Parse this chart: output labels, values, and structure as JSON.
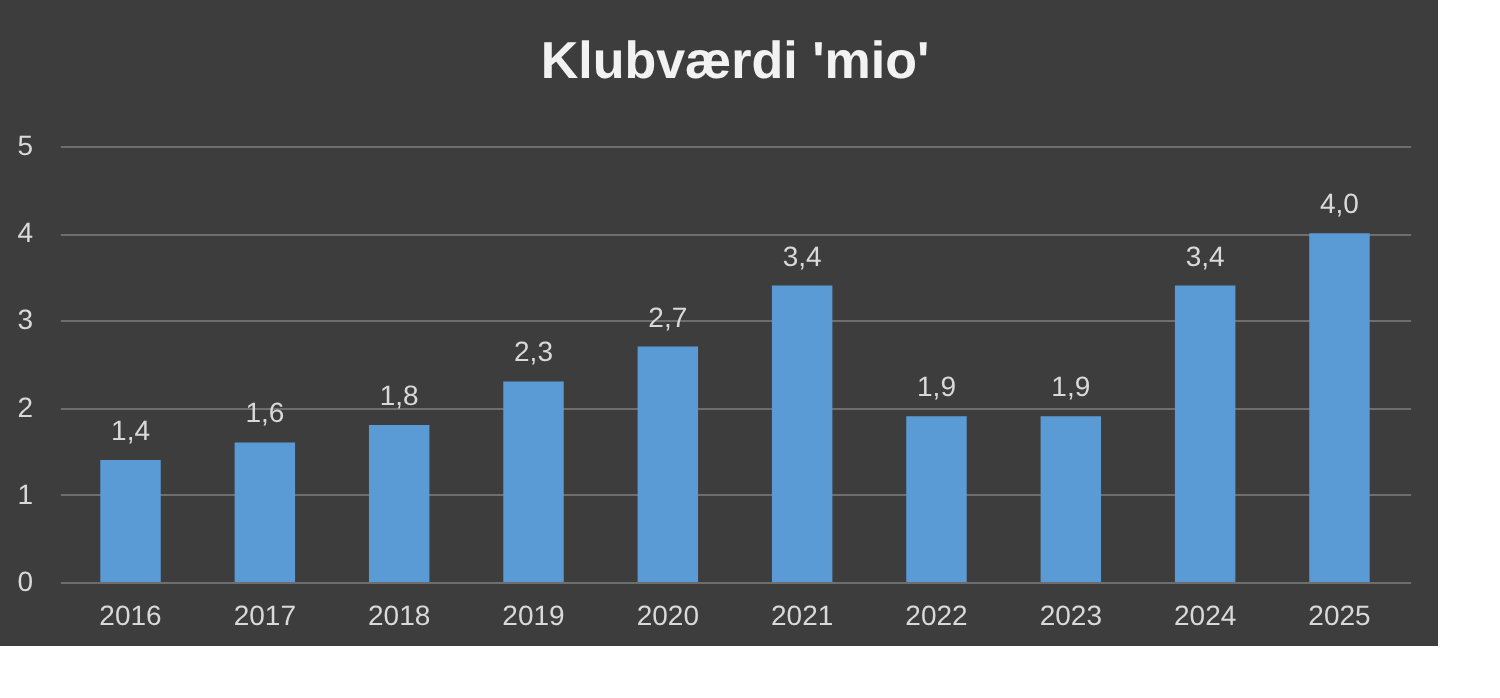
{
  "chart_data": {
    "type": "bar",
    "title": "Klubværdi 'mio'",
    "categories": [
      "2016",
      "2017",
      "2018",
      "2019",
      "2020",
      "2021",
      "2022",
      "2023",
      "2024",
      "2025"
    ],
    "values": [
      1.4,
      1.6,
      1.8,
      2.3,
      2.7,
      3.4,
      1.9,
      1.9,
      3.4,
      4.0
    ],
    "value_labels": [
      "1,4",
      "1,6",
      "1,8",
      "2,3",
      "2,7",
      "3,4",
      "1,9",
      "1,9",
      "3,4",
      "4,0"
    ],
    "color": "#5b9bd5",
    "ylim": [
      0,
      5
    ],
    "yticks": [
      0,
      1,
      2,
      3,
      4,
      5
    ],
    "grid": "y"
  }
}
